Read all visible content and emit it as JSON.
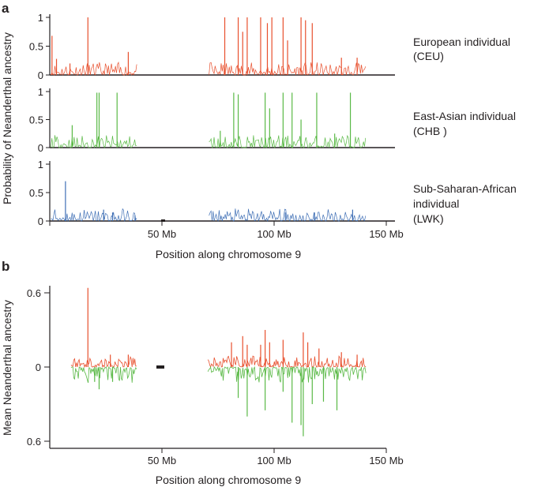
{
  "panel_a": {
    "letter": "a",
    "ylabel": "Probability of Neanderthal ancestry",
    "xlabel": "Position along chromosome 9",
    "xticks": [
      "50 Mb",
      "100 Mb",
      "150 Mb"
    ],
    "yticks": [
      "1",
      "0.5",
      "0"
    ],
    "rows": [
      {
        "label": [
          "European individual",
          "(CEU)"
        ],
        "color": "#e8502e"
      },
      {
        "label": [
          "East-Asian individual",
          "(CHB )"
        ],
        "color": "#5ab946"
      },
      {
        "label": [
          "Sub-Saharan-African",
          "individual",
          "(LWK)"
        ],
        "color": "#3f6fb5"
      }
    ]
  },
  "panel_b": {
    "letter": "b",
    "ylabel": "Mean Neanderthal ancestry",
    "xlabel": "Position along chromosome 9",
    "xticks": [
      "50 Mb",
      "100 Mb",
      "150 Mb"
    ],
    "yticks": [
      "0.6",
      "0",
      "0.6"
    ],
    "colors": {
      "up": "#e8502e",
      "down": "#5ab946"
    }
  },
  "chart_data": [
    {
      "type": "line",
      "panel": "a",
      "xlabel": "Position along chromosome 9",
      "ylabel": "Probability of Neanderthal ancestry",
      "x_unit": "Mb",
      "xlim": [
        0,
        153
      ],
      "ylim": [
        0,
        1
      ],
      "gap_regions_mb": [
        [
          40,
          70
        ]
      ],
      "series": [
        {
          "name": "European individual (CEU)",
          "color": "#e8502e",
          "x": [
            1,
            3,
            9,
            17,
            35,
            78,
            84,
            86,
            88,
            94,
            97,
            99,
            104,
            106,
            112,
            114,
            117,
            130,
            137
          ],
          "y": [
            0.68,
            0.28,
            0.2,
            1.0,
            0.4,
            1.0,
            1.0,
            0.75,
            1.0,
            1.0,
            0.9,
            1.0,
            1.0,
            0.6,
            1.0,
            0.95,
            0.9,
            0.3,
            0.3
          ]
        },
        {
          "name": "East-Asian individual (CHB )",
          "color": "#5ab946",
          "x": [
            10,
            21,
            22,
            30,
            76,
            82,
            84,
            96,
            98,
            104,
            108,
            112,
            119,
            127,
            134
          ],
          "y": [
            0.4,
            0.98,
            0.98,
            0.98,
            0.3,
            0.98,
            0.95,
            0.98,
            0.7,
            0.98,
            0.98,
            0.5,
            0.98,
            0.25,
            0.98
          ]
        },
        {
          "name": "Sub-Saharan-African individual (LWK)",
          "color": "#3f6fb5",
          "x": [
            7,
            24,
            28,
            38,
            105,
            118,
            135
          ],
          "y": [
            0.7,
            0.2,
            0.15,
            0.1,
            0.15,
            0.15,
            0.2
          ]
        }
      ]
    },
    {
      "type": "line",
      "panel": "b",
      "xlabel": "Position along chromosome 9",
      "ylabel": "Mean Neanderthal ancestry",
      "x_unit": "Mb",
      "xlim": [
        0,
        153
      ],
      "ylim": [
        -0.6,
        0.6
      ],
      "gap_regions_mb": [
        [
          40,
          70
        ]
      ],
      "series": [
        {
          "name": "CEU (upward)",
          "color": "#e8502e",
          "x": [
            17,
            27,
            35,
            81,
            86,
            88,
            94,
            96,
            98,
            104,
            113,
            115,
            120,
            130,
            137
          ],
          "y": [
            0.64,
            0.1,
            0.1,
            0.2,
            0.25,
            0.18,
            0.18,
            0.3,
            0.2,
            0.22,
            0.28,
            0.2,
            0.15,
            0.12,
            0.1
          ]
        },
        {
          "name": "CHB (downward)",
          "color": "#5ab946",
          "x": [
            20,
            22,
            28,
            84,
            88,
            96,
            104,
            108,
            112,
            113,
            117,
            122,
            128
          ],
          "y": [
            -0.12,
            -0.18,
            -0.12,
            -0.25,
            -0.4,
            -0.35,
            -0.2,
            -0.45,
            -0.47,
            -0.56,
            -0.3,
            -0.28,
            -0.35
          ]
        }
      ]
    }
  ]
}
